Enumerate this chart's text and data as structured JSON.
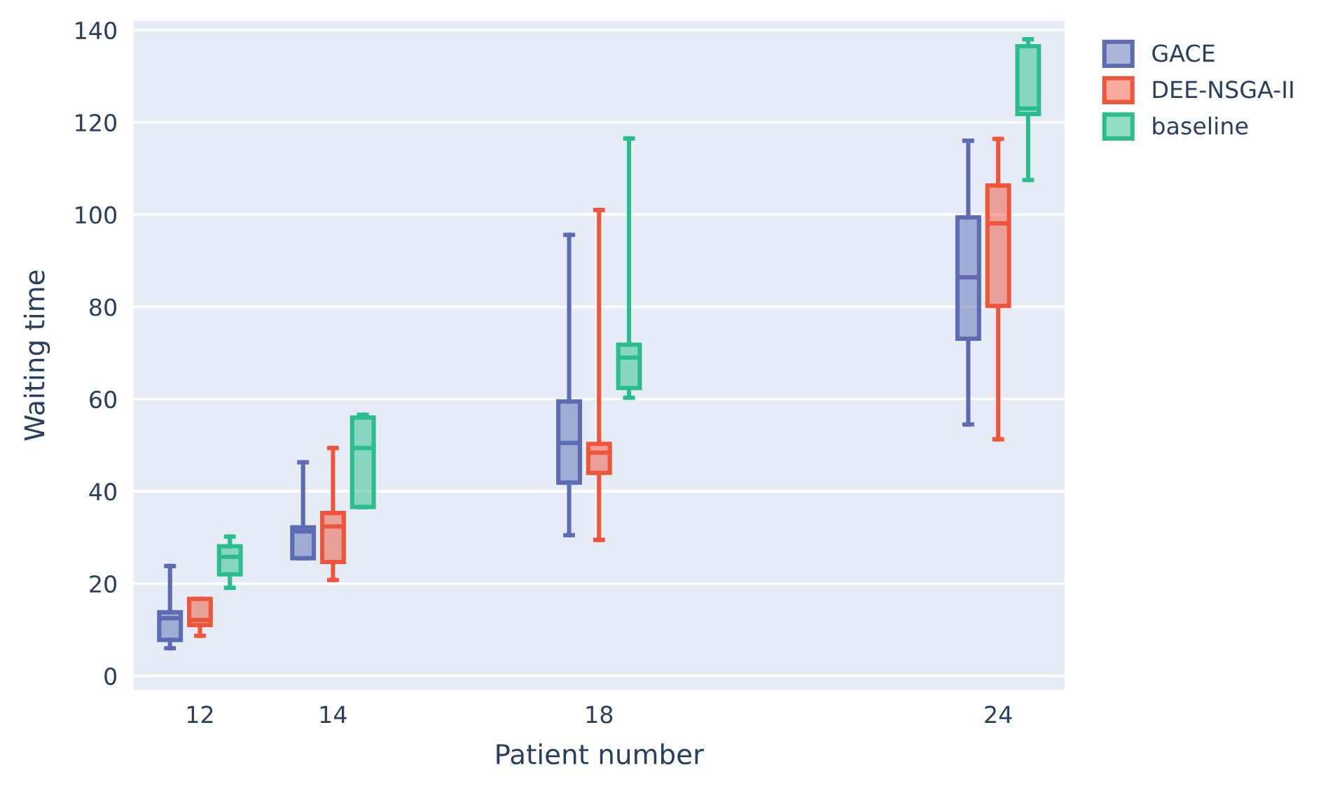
{
  "chart_data": {
    "type": "box",
    "xlabel": "Patient number",
    "ylabel": "Waiting time",
    "x": [
      12,
      14,
      18,
      24
    ],
    "xlim": [
      11,
      25
    ],
    "xticks": [
      12,
      14,
      18,
      24
    ],
    "ylim": [
      -3,
      142
    ],
    "yticks": [
      0,
      20,
      40,
      60,
      80,
      100,
      120,
      140
    ],
    "grid": "y",
    "legend": "top right",
    "series": [
      {
        "name": "GACE",
        "color": "#5c6bb2",
        "boxes": [
          {
            "low": 6,
            "q1": 7.8,
            "median": 12.5,
            "q3": 13.8,
            "high": 23.8
          },
          {
            "low": 25.5,
            "q1": 25.5,
            "median": 31.3,
            "q3": 32.2,
            "high": 46.3
          },
          {
            "low": 30.5,
            "q1": 41.9,
            "median": 50.5,
            "q3": 59.5,
            "high": 95.6
          },
          {
            "low": 54.5,
            "q1": 73.1,
            "median": 86.4,
            "q3": 99.4,
            "high": 116
          }
        ]
      },
      {
        "name": "DEE-NSGA-II",
        "color": "#ef553b",
        "boxes": [
          {
            "low": 8.7,
            "q1": 11,
            "median": 12.1,
            "q3": 16.7,
            "high": 16.7
          },
          {
            "low": 20.8,
            "q1": 24.7,
            "median": 32.4,
            "q3": 35.3,
            "high": 49.4
          },
          {
            "low": 29.5,
            "q1": 44,
            "median": 48.4,
            "q3": 50.3,
            "high": 101
          },
          {
            "low": 51.3,
            "q1": 80.2,
            "median": 98.1,
            "q3": 106.3,
            "high": 116.4
          }
        ]
      },
      {
        "name": "baseline",
        "color": "#2bbd8e",
        "boxes": [
          {
            "low": 19.1,
            "q1": 22,
            "median": 25.8,
            "q3": 28.1,
            "high": 30.2
          },
          {
            "low": 36.6,
            "q1": 36.6,
            "median": 49.4,
            "q3": 56,
            "high": 56.6
          },
          {
            "low": 60.3,
            "q1": 62.4,
            "median": 69,
            "q3": 71.8,
            "high": 116.5
          },
          {
            "low": 107.5,
            "q1": 121.8,
            "median": 123,
            "q3": 136.5,
            "high": 138
          }
        ]
      }
    ]
  }
}
